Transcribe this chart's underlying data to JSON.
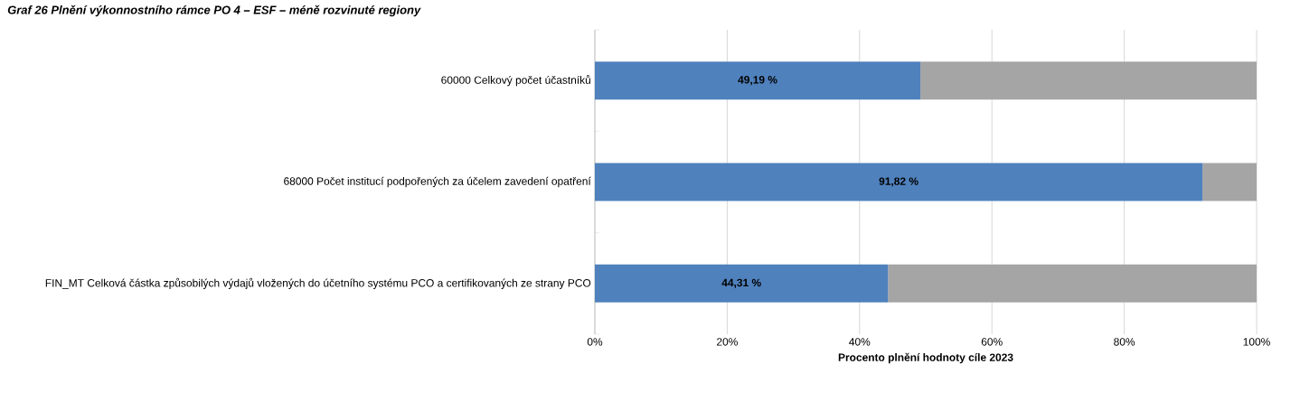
{
  "chart_data": {
    "type": "bar",
    "orientation": "horizontal",
    "stacked": true,
    "title": "Graf 26 Plnění výkonnostního rámce PO 4 – ESF – méně rozvinuté regiony",
    "categories": [
      "60000 Celkový počet účastníků",
      "68000 Počet institucí podpořených za účelem zavedení opatření",
      "FIN_MT Celková částka způsobilých výdajů vložených do účetního systému PCO a certifikovaných ze strany PCO"
    ],
    "series": [
      {
        "color": "#4f81bd",
        "values": [
          49.19,
          91.82,
          44.31
        ],
        "value_labels": [
          "49,19 %",
          "91,82 %",
          "44,31 %"
        ]
      },
      {
        "color": "#a5a5a5",
        "values": [
          50.81,
          8.18,
          55.69
        ]
      }
    ],
    "xlim": [
      0,
      100
    ],
    "xticks": [
      {
        "value": 0,
        "label": "0%"
      },
      {
        "value": 20,
        "label": "20%"
      },
      {
        "value": 40,
        "label": "40%"
      },
      {
        "value": 60,
        "label": "60%"
      },
      {
        "value": 80,
        "label": "80%"
      },
      {
        "value": 100,
        "label": "100%"
      }
    ],
    "xlabel": "Procento plnění hodnoty cíle 2023",
    "grid": "x"
  }
}
